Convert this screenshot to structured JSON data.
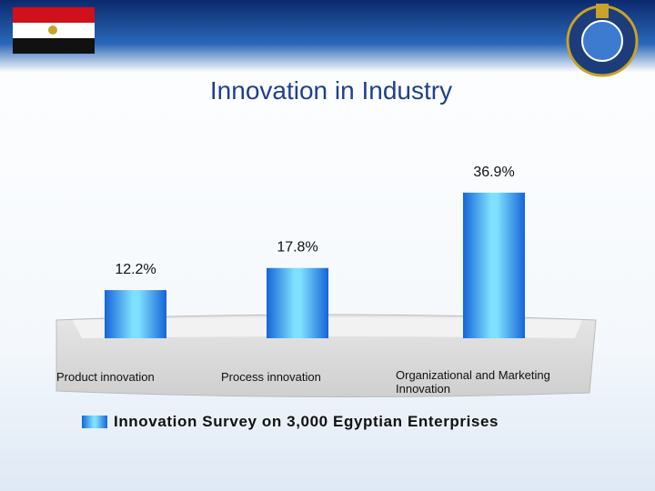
{
  "chart_data": {
    "type": "bar",
    "title": "Innovation in Industry",
    "categories": [
      "Product innovation",
      "Process innovation",
      "Organizational and Marketing Innovation"
    ],
    "series": [
      {
        "name": "Innovation Survey on 3,000 Egyptian Enterprises",
        "color": "#1e8fe6",
        "values": [
          12.2,
          17.8,
          36.9
        ],
        "value_labels": [
          "12.2%",
          "17.8%",
          "36.9%"
        ]
      }
    ]
  }
}
